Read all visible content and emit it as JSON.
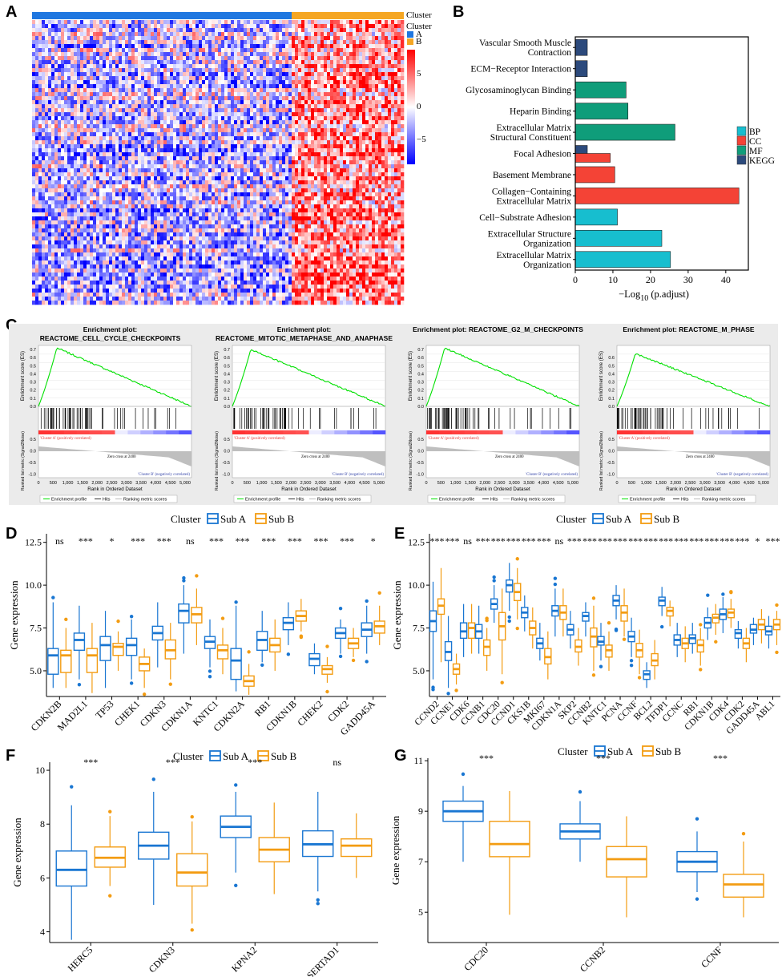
{
  "panels": {
    "A": "A",
    "B": "B",
    "C": "C",
    "D": "D",
    "E": "E",
    "F": "F",
    "G": "G"
  },
  "heatmap": {
    "cluster_title": "Cluster",
    "legend_title": "Cluster",
    "legend_items": [
      {
        "label": "A",
        "color": "#1f77e0"
      },
      {
        "label": "B",
        "color": "#f5a623"
      }
    ],
    "scale_ticks": [
      "5",
      "0",
      "−5"
    ],
    "colors": {
      "high": "#ff0000",
      "mid": "#ffffff",
      "low": "#0000ff"
    }
  },
  "chart_data": [
    {
      "id": "B",
      "type": "bar",
      "orientation": "horizontal",
      "categories": [
        "Vascular Smooth Muscle|Contraction",
        "ECM−Receptor Interaction",
        "Glycosaminoglycan Binding",
        "Heparin Binding",
        "Extracellular Matrix|Structural Constituent",
        "Focal Adhesion",
        "Basement Membrane",
        "Collagen−Containing|Extracellular Matrix",
        "Cell−Substrate Adhesion",
        "Extracellular Structure|Organization",
        "Extracellular Matrix|Organization"
      ],
      "bars": [
        {
          "cat": 0,
          "value": 3.2,
          "group": "KEGG"
        },
        {
          "cat": 1,
          "value": 3.2,
          "group": "KEGG"
        },
        {
          "cat": 2,
          "value": 13.5,
          "group": "MF"
        },
        {
          "cat": 3,
          "value": 14,
          "group": "MF"
        },
        {
          "cat": 4,
          "value": 26.5,
          "group": "MF"
        },
        {
          "cat": 5,
          "value": 3.2,
          "group": "KEGG",
          "offset": -1
        },
        {
          "cat": 5,
          "value": 9.3,
          "group": "CC",
          "offset": 1
        },
        {
          "cat": 6,
          "value": 10.5,
          "group": "CC"
        },
        {
          "cat": 7,
          "value": 43.5,
          "group": "CC"
        },
        {
          "cat": 8,
          "value": 11.2,
          "group": "BP"
        },
        {
          "cat": 9,
          "value": 23,
          "group": "BP"
        },
        {
          "cat": 10,
          "value": 25.3,
          "group": "BP"
        }
      ],
      "xticks": [
        0,
        10,
        20,
        30,
        40
      ],
      "xlim": [
        0,
        46
      ],
      "xlabel": "−Log10 (p.adjust)",
      "xlabel_main": "−Log",
      "xlabel_sub": "10",
      "xlabel_rest": " (p.adjust)",
      "legend": [
        {
          "label": "BP",
          "color": "#17becf"
        },
        {
          "label": "CC",
          "color": "#f44336"
        },
        {
          "label": "MF",
          "color": "#0f9d7a"
        },
        {
          "label": "KEGG",
          "color": "#2c4a7c"
        }
      ]
    },
    {
      "id": "C",
      "type": "line",
      "plots": [
        {
          "title_top": "Enrichment plot:",
          "title_main": "REACTOME_CELL_CYCLE_CHECKPOINTS",
          "peak": 0.72,
          "ymax": 0.7
        },
        {
          "title_top": "Enrichment plot:",
          "title_main": "REACTOME_MITOTIC_METAPHASE_AND_ANAPHASE",
          "peak": 0.7,
          "ymax": 0.7
        },
        {
          "title_top": "",
          "title_main": "Enrichment plot: REACTOME_G2_M_CHECKPOINTS",
          "peak": 0.72,
          "ymax": 0.7
        },
        {
          "title_top": "",
          "title_main": "Enrichment plot: REACTOME_M_PHASE",
          "peak": 0.65,
          "ymax": 0.6
        }
      ],
      "ylabel_es": "Enrichment score (ES)",
      "ylabel_rank": "Ranked list metric (Signal2Noise)",
      "xlabel": "Rank in Ordered Dataset",
      "xticks": [
        "0",
        "500",
        "1,000",
        "1,500",
        "2,000",
        "2,500",
        "3,000",
        "3,500",
        "4,000",
        "4,500",
        "5,000"
      ],
      "pos_label": "'Cluster A' (positively correlated)",
      "neg_label": "'Cluster B' (negatively correlated)",
      "zero_cross": "Zero cross at 2400",
      "legend": [
        "Enrichment profile",
        "Hits",
        "Ranking metric scores"
      ]
    },
    {
      "id": "D",
      "type": "box",
      "legend_title": "Cluster",
      "legend": [
        "Sub A",
        "Sub B"
      ],
      "ylabel": "Gene expression",
      "ylim": [
        3.5,
        13
      ],
      "yticks": [
        "5.0",
        "7.5",
        "10.0",
        "12.5"
      ],
      "ytick_vals": [
        5,
        7.5,
        10,
        12.5
      ],
      "genes": [
        "CDKN2B",
        "MAD2L1",
        "TP53",
        "CHEK1",
        "CDKN3",
        "CDKN1A",
        "KNTC1",
        "CDKN2A",
        "RB1",
        "CDKN1B",
        "CHEK2",
        "CDK2",
        "GADD45A"
      ],
      "signif": [
        "ns",
        "***",
        "*",
        "***",
        "***",
        "ns",
        "***",
        "***",
        "***",
        "***",
        "***",
        "***",
        "*"
      ],
      "a": [
        [
          4.8,
          5.9,
          6.3,
          4,
          9
        ],
        [
          6.2,
          6.8,
          7.2,
          4.5,
          8.8
        ],
        [
          5.6,
          6.5,
          7.0,
          4,
          8.5
        ],
        [
          5.9,
          6.5,
          6.9,
          4.5,
          8
        ],
        [
          6.8,
          7.2,
          7.6,
          5.2,
          9
        ],
        [
          7.8,
          8.5,
          8.9,
          6,
          10
        ],
        [
          6.3,
          6.7,
          7.0,
          5.2,
          8
        ],
        [
          4.5,
          5.6,
          6.3,
          3.8,
          8.8
        ],
        [
          6.2,
          6.8,
          7.3,
          5.5,
          8.5
        ],
        [
          7.4,
          7.8,
          8.1,
          6.5,
          9
        ],
        [
          5.3,
          5.7,
          6.0,
          4.8,
          6.6
        ],
        [
          6.9,
          7.2,
          7.5,
          6,
          8
        ],
        [
          7.0,
          7.4,
          7.8,
          6,
          8.8
        ]
      ],
      "b": [
        [
          4.9,
          5.9,
          6.2,
          4,
          7.5
        ],
        [
          4.9,
          5.9,
          6.3,
          3.7,
          7.8
        ],
        [
          5.9,
          6.4,
          6.6,
          5,
          7.3
        ],
        [
          5.0,
          5.4,
          5.8,
          4,
          6.3
        ],
        [
          5.7,
          6.2,
          6.8,
          4.5,
          7.8
        ],
        [
          7.8,
          8.3,
          8.7,
          6.5,
          9.8
        ],
        [
          5.7,
          6.2,
          6.5,
          4.8,
          7.5
        ],
        [
          4.1,
          4.4,
          4.7,
          3.6,
          5.4
        ],
        [
          6.1,
          6.5,
          6.9,
          5,
          8
        ],
        [
          7.9,
          8.2,
          8.5,
          7.3,
          9.2
        ],
        [
          4.8,
          5.1,
          5.3,
          4.3,
          5.8
        ],
        [
          6.3,
          6.6,
          6.9,
          5.8,
          7.5
        ],
        [
          7.2,
          7.6,
          7.9,
          6.5,
          8.8
        ]
      ]
    },
    {
      "id": "E",
      "type": "box",
      "legend_title": "Cluster",
      "legend": [
        "Sub A",
        "Sub B"
      ],
      "ylabel": "Gene expression",
      "ylim": [
        3.5,
        13
      ],
      "yticks": [
        "5.0",
        "7.5",
        "10.0",
        "12.5"
      ],
      "ytick_vals": [
        5,
        7.5,
        10,
        12.5
      ],
      "genes": [
        "CCND2",
        "CCNE1",
        "CDK6",
        "CCNB1",
        "CDC20",
        "CCND1",
        "CKS1B",
        "MKI67",
        "CDKN1A",
        "SKP2",
        "CCNB2",
        "KNTC1",
        "PCNA",
        "CCNF",
        "BCL2",
        "TFDP1",
        "CCNC",
        "RB1",
        "CDKN1B",
        "CDK4",
        "CDK2",
        "GADD45A",
        "ABL1"
      ],
      "signif": [
        "***",
        "***",
        "ns",
        "***",
        "***",
        "***",
        "***",
        "***",
        "ns",
        "***",
        "***",
        "***",
        "***",
        "***",
        "***",
        "***",
        "***",
        "***",
        "***",
        "***",
        "***",
        "*",
        "***"
      ],
      "a": [
        [
          7.3,
          7.9,
          8.5,
          4.5,
          10.2
        ],
        [
          5.6,
          6.1,
          6.7,
          4,
          8.2
        ],
        [
          6.9,
          7.3,
          7.8,
          5.8,
          8.9
        ],
        [
          6.9,
          7.3,
          7.7,
          6,
          8.8
        ],
        [
          8.6,
          8.9,
          9.2,
          7.8,
          10
        ],
        [
          9.6,
          10.0,
          10.3,
          8.5,
          11.3
        ],
        [
          8.1,
          8.4,
          8.7,
          7.3,
          9.4
        ],
        [
          6.3,
          6.6,
          6.9,
          5.6,
          7.8
        ],
        [
          8.2,
          8.5,
          8.8,
          7,
          9.8
        ],
        [
          7.1,
          7.4,
          7.7,
          6.3,
          8.5
        ],
        [
          7.9,
          8.2,
          8.4,
          7,
          9
        ],
        [
          6.5,
          6.7,
          7.0,
          5.6,
          7.8
        ],
        [
          8.8,
          9.1,
          9.4,
          8,
          10
        ],
        [
          6.7,
          7.0,
          7.3,
          5.8,
          8.1
        ],
        [
          4.5,
          4.8,
          5.0,
          4,
          5.5
        ],
        [
          8.8,
          9.1,
          9.3,
          8.2,
          9.9
        ],
        [
          6.5,
          6.8,
          7.1,
          5.8,
          7.8
        ],
        [
          6.6,
          6.9,
          7.1,
          6,
          7.8
        ],
        [
          7.5,
          7.8,
          8.1,
          6.8,
          8.7
        ],
        [
          8.0,
          8.3,
          8.6,
          7.2,
          9.3
        ],
        [
          6.9,
          7.2,
          7.4,
          6.3,
          7.9
        ],
        [
          7.2,
          7.4,
          7.7,
          6.5,
          8.1
        ],
        [
          7.1,
          7.3,
          7.6,
          6.3,
          8.2
        ]
      ],
      "b": [
        [
          8.3,
          8.8,
          9.2,
          5.5,
          11
        ],
        [
          4.8,
          5.1,
          5.4,
          4.2,
          6
        ],
        [
          6.9,
          7.5,
          7.8,
          6,
          8.9
        ],
        [
          5.9,
          6.4,
          6.8,
          5,
          7.5
        ],
        [
          6.8,
          7.6,
          8.4,
          4.8,
          9.8
        ],
        [
          9.1,
          9.6,
          10.1,
          8,
          11
        ],
        [
          7.1,
          7.5,
          7.9,
          6.3,
          8.7
        ],
        [
          5.4,
          5.8,
          6.3,
          4.5,
          7.3
        ],
        [
          8.0,
          8.4,
          8.8,
          7,
          9.8
        ],
        [
          6.1,
          6.4,
          6.8,
          5.3,
          7.5
        ],
        [
          6.4,
          7.0,
          7.5,
          5,
          8.8
        ],
        [
          5.8,
          6.2,
          6.5,
          5,
          7.3
        ],
        [
          7.9,
          8.4,
          8.8,
          7,
          9.8
        ],
        [
          5.8,
          6.2,
          6.6,
          4.8,
          7.4
        ],
        [
          5.3,
          5.6,
          6.0,
          4.5,
          6.8
        ],
        [
          8.2,
          8.5,
          8.7,
          7.6,
          9.1
        ],
        [
          6.3,
          6.6,
          6.9,
          5.5,
          7.6
        ],
        [
          6.1,
          6.5,
          6.8,
          5.3,
          7.5
        ],
        [
          7.8,
          8.1,
          8.3,
          7.1,
          8.9
        ],
        [
          8.1,
          8.4,
          8.6,
          7.5,
          9.2
        ],
        [
          6.3,
          6.6,
          6.9,
          5.5,
          7.5
        ],
        [
          7.4,
          7.7,
          8.0,
          6.6,
          8.6
        ],
        [
          7.4,
          7.7,
          8.0,
          6.5,
          8.5
        ]
      ]
    },
    {
      "id": "F",
      "type": "box",
      "legend_title": "Cluster",
      "legend": [
        "Sub A",
        "Sub B"
      ],
      "ylabel": "Gene expression",
      "ylim": [
        3.6,
        10.3
      ],
      "yticks": [
        "4",
        "6",
        "8",
        "10"
      ],
      "ytick_vals": [
        4,
        6,
        8,
        10
      ],
      "genes": [
        "HERC5",
        "CDKN3",
        "KPNA2",
        "SERTAD1"
      ],
      "signif": [
        "***",
        "***",
        "***",
        "ns"
      ],
      "a": [
        [
          5.7,
          6.3,
          7.0,
          3.7,
          8.7
        ],
        [
          6.7,
          7.2,
          7.7,
          5,
          9.2
        ],
        [
          7.5,
          7.9,
          8.3,
          6.2,
          9.2
        ],
        [
          6.8,
          7.25,
          7.75,
          5.5,
          9.2
        ]
      ],
      "b": [
        [
          6.4,
          6.75,
          7.15,
          5.7,
          8.3
        ],
        [
          5.7,
          6.2,
          6.9,
          4.3,
          8.1
        ],
        [
          6.6,
          7.05,
          7.5,
          5.4,
          8.8
        ],
        [
          6.8,
          7.2,
          7.45,
          6,
          8.4
        ]
      ]
    },
    {
      "id": "G",
      "type": "box",
      "legend_title": "Cluster",
      "legend": [
        "Sub A",
        "Sub B"
      ],
      "ylabel": "Gene expression",
      "ylim": [
        3.8,
        11.1
      ],
      "yticks": [
        "5",
        "7",
        "9",
        "11"
      ],
      "ytick_vals": [
        5,
        7,
        9,
        11
      ],
      "genes": [
        "CDC20",
        "CCNB2",
        "CCNF"
      ],
      "signif": [
        "***",
        "***",
        "***"
      ],
      "a": [
        [
          8.6,
          9.0,
          9.4,
          7,
          10
        ],
        [
          7.9,
          8.2,
          8.5,
          7,
          9.4
        ],
        [
          6.6,
          7.0,
          7.4,
          5.8,
          8.2
        ]
      ],
      "b": [
        [
          7.2,
          7.7,
          8.6,
          4.9,
          9.8
        ],
        [
          6.4,
          7.1,
          7.6,
          4.8,
          8.8
        ],
        [
          5.6,
          6.1,
          6.5,
          4.8,
          7.8
        ]
      ]
    }
  ]
}
